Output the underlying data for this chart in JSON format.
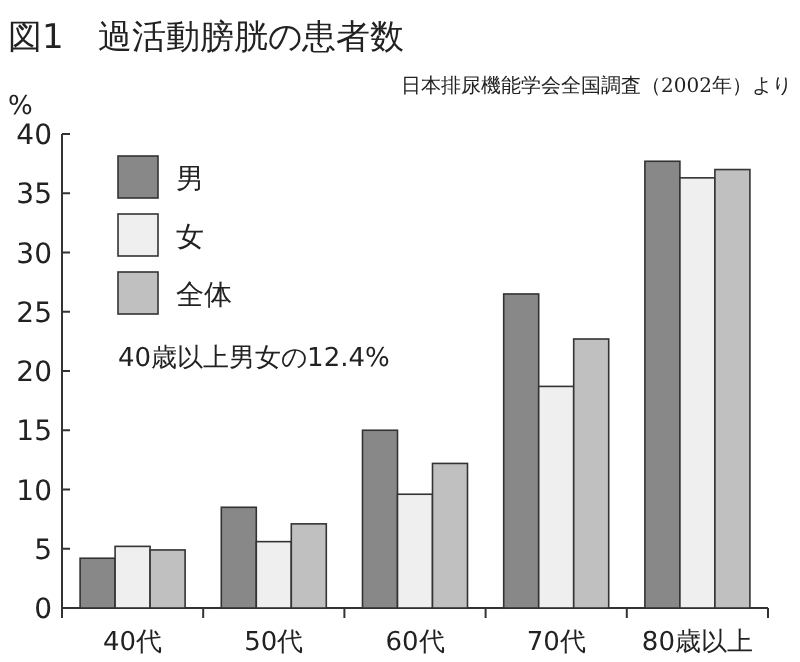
{
  "chart_data": {
    "type": "bar",
    "title": "図1　過活動膀胱の患者数",
    "ylabel": "%",
    "annotations": [
      "日本排尿機能学会全国調査（2002年）より",
      "40歳以上男女の12.4%"
    ],
    "categories": [
      "40代",
      "50代",
      "60代",
      "70代",
      "80歳以上"
    ],
    "series": [
      {
        "name": "男",
        "color": "#888888",
        "values": [
          4.2,
          8.5,
          15.0,
          26.5,
          37.7
        ]
      },
      {
        "name": "女",
        "color": "#efefef",
        "values": [
          5.2,
          5.6,
          9.6,
          18.7,
          36.3
        ]
      },
      {
        "name": "全体",
        "color": "#c0c0c0",
        "values": [
          4.9,
          7.1,
          12.2,
          22.7,
          37.0
        ]
      }
    ],
    "ylim": [
      0,
      40
    ],
    "yticks": [
      0,
      5,
      10,
      15,
      20,
      25,
      30,
      35,
      40
    ],
    "grid": false,
    "legend": "top left"
  }
}
